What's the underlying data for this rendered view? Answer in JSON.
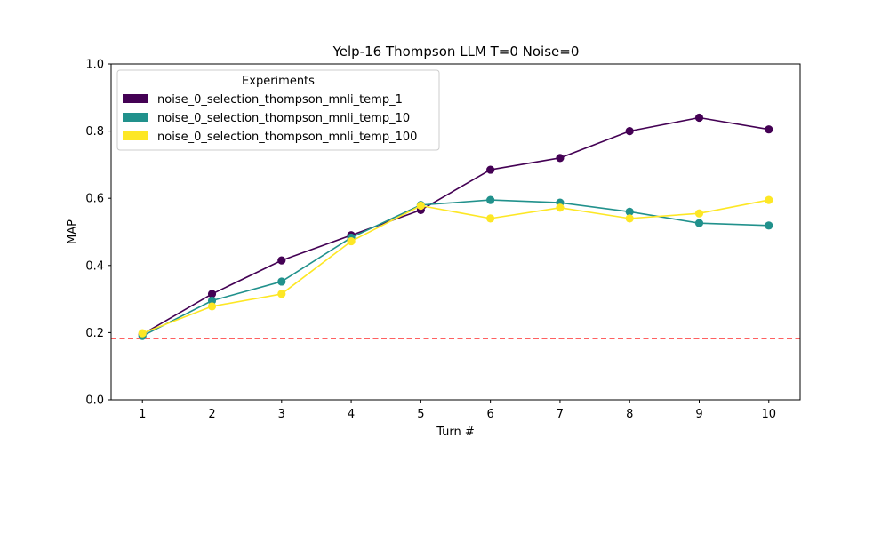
{
  "chart_data": {
    "type": "line",
    "title": "Yelp-16 Thompson LLM T=0 Noise=0",
    "xlabel": "Turn #",
    "ylabel": "MAP",
    "x": [
      1,
      2,
      3,
      4,
      5,
      6,
      7,
      8,
      9,
      10
    ],
    "xlim": [
      0.55,
      10.45
    ],
    "ylim": [
      0.0,
      1.0
    ],
    "yticks": [
      "0.0",
      "0.2",
      "0.4",
      "0.6",
      "0.8",
      "1.0"
    ],
    "xticks": [
      "1",
      "2",
      "3",
      "4",
      "5",
      "6",
      "7",
      "8",
      "9",
      "10"
    ],
    "grid": false,
    "legend": {
      "title": "Experiments",
      "placement": "top-left"
    },
    "baseline": {
      "value": 0.183,
      "color": "#ff0000",
      "style": "dashed"
    },
    "series": [
      {
        "name": "noise_0_selection_thompson_mnli_temp_1",
        "color": "#440154",
        "values": [
          0.195,
          0.315,
          0.415,
          0.49,
          0.565,
          0.685,
          0.72,
          0.8,
          0.84,
          0.805
        ]
      },
      {
        "name": "noise_0_selection_thompson_mnli_temp_10",
        "color": "#21918c",
        "values": [
          0.19,
          0.295,
          0.352,
          0.483,
          0.58,
          0.595,
          0.587,
          0.56,
          0.526,
          0.519
        ]
      },
      {
        "name": "noise_0_selection_thompson_mnli_temp_100",
        "color": "#fde725",
        "values": [
          0.198,
          0.278,
          0.315,
          0.472,
          0.578,
          0.54,
          0.572,
          0.54,
          0.555,
          0.595
        ]
      }
    ]
  }
}
